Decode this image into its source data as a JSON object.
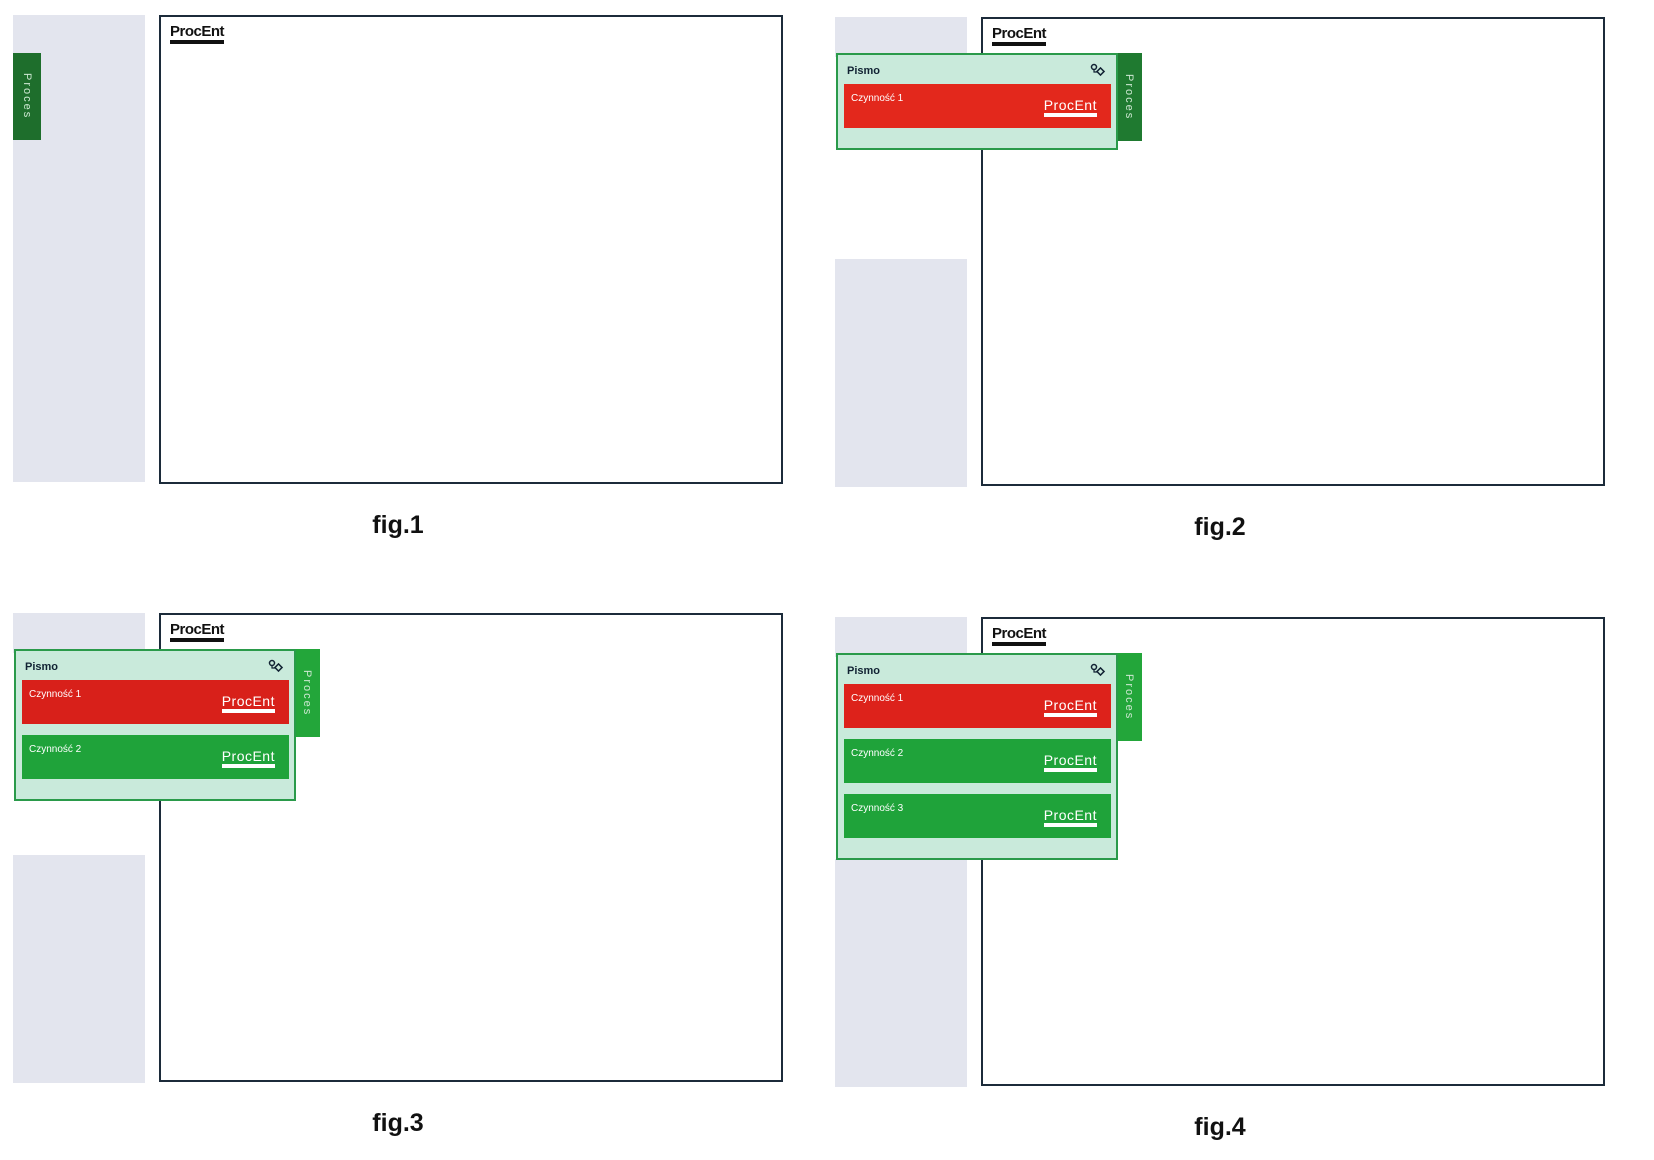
{
  "figures": [
    {
      "caption": "fig.1",
      "logo": "ProcEnt",
      "tab": "Proces",
      "tab_color": "#1e6e2c"
    },
    {
      "caption": "fig.2",
      "logo": "ProcEnt",
      "tab": "Proces",
      "tab_color": "#1f7a30",
      "panel": {
        "title": "Pismo",
        "items": [
          {
            "label": "Czynność 1",
            "logo": "ProcEnt",
            "color": "#e3281c"
          }
        ]
      }
    },
    {
      "caption": "fig.3",
      "logo": "ProcEnt",
      "tab": "Proces",
      "tab_color": "#23a63a",
      "panel": {
        "title": "Pismo",
        "items": [
          {
            "label": "Czynność 1",
            "logo": "ProcEnt",
            "color": "#d8201a"
          },
          {
            "label": "Czynność 2",
            "logo": "ProcEnt",
            "color": "#1fa33a"
          }
        ]
      }
    },
    {
      "caption": "fig.4",
      "logo": "ProcEnt",
      "tab": "Proces",
      "tab_color": "#23a63a",
      "panel": {
        "title": "Pismo",
        "items": [
          {
            "label": "Czynność 1",
            "logo": "ProcEnt",
            "color": "#dd221b"
          },
          {
            "label": "Czynność 2",
            "logo": "ProcEnt",
            "color": "#1fa33a"
          },
          {
            "label": "Czynność 3",
            "logo": "ProcEnt",
            "color": "#1fa33a"
          }
        ]
      }
    }
  ]
}
